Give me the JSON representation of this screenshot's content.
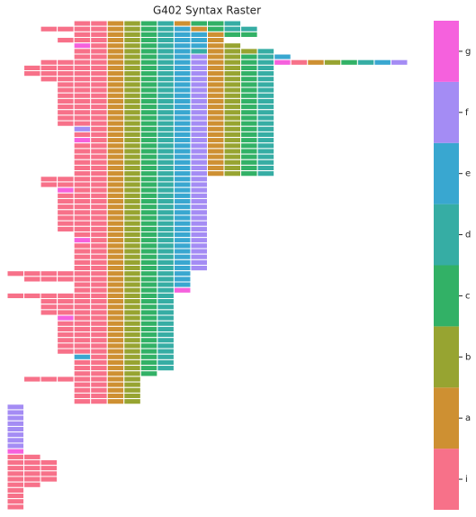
{
  "chart_data": {
    "type": "raster",
    "title": "G402 Syntax Raster",
    "colors": [
      "#f77189",
      "#ce9032",
      "#97a431",
      "#32b166",
      "#36ada4",
      "#39a7d0",
      "#a48cf4",
      "#f561dd"
    ],
    "clim": [
      -0.5,
      7.5
    ],
    "cticks": [
      {
        "value": 0,
        "label": "i"
      },
      {
        "value": 1,
        "label": "a"
      },
      {
        "value": 2,
        "label": "b"
      },
      {
        "value": 3,
        "label": "c"
      },
      {
        "value": 4,
        "label": "d"
      },
      {
        "value": 5,
        "label": "e"
      },
      {
        "value": 6,
        "label": "f"
      },
      {
        "value": 7,
        "label": "g"
      }
    ],
    "z": [
      [
        null,
        null,
        null,
        null,
        0,
        0,
        1,
        2,
        3,
        4,
        1,
        3,
        3,
        4
      ],
      [
        null,
        null,
        0,
        0,
        0,
        0,
        1,
        2,
        3,
        4,
        5,
        1,
        3,
        4,
        4
      ],
      [
        null,
        null,
        null,
        null,
        0,
        0,
        1,
        2,
        3,
        4,
        5,
        5,
        1,
        3,
        3
      ],
      [
        null,
        null,
        null,
        0,
        0,
        0,
        1,
        2,
        3,
        4,
        5,
        5,
        1
      ],
      [
        null,
        null,
        null,
        null,
        7,
        0,
        1,
        2,
        3,
        4,
        5,
        5,
        1,
        2
      ],
      [
        null,
        null,
        null,
        null,
        0,
        0,
        1,
        2,
        3,
        4,
        5,
        4,
        1,
        2,
        2,
        4
      ],
      [
        null,
        null,
        null,
        null,
        0,
        0,
        1,
        2,
        3,
        4,
        5,
        6,
        1,
        2,
        3,
        4,
        5
      ],
      [
        null,
        null,
        0,
        0,
        0,
        0,
        1,
        2,
        3,
        4,
        5,
        6,
        1,
        2,
        3,
        4,
        7,
        0,
        1,
        2,
        3,
        4,
        5,
        6
      ],
      [
        null,
        0,
        0,
        0,
        0,
        0,
        1,
        2,
        3,
        4,
        5,
        6,
        1,
        2,
        3,
        4
      ],
      [
        null,
        0,
        0,
        0,
        0,
        0,
        1,
        2,
        3,
        4,
        5,
        6,
        1,
        2,
        3,
        4
      ],
      [
        null,
        null,
        0,
        0,
        0,
        0,
        1,
        2,
        3,
        4,
        5,
        6,
        1,
        2,
        3,
        4
      ],
      [
        null,
        null,
        null,
        0,
        0,
        0,
        1,
        2,
        3,
        4,
        5,
        6,
        1,
        2,
        3,
        4
      ],
      [
        null,
        null,
        null,
        0,
        0,
        0,
        1,
        2,
        3,
        4,
        5,
        6,
        1,
        2,
        3,
        4
      ],
      [
        null,
        null,
        null,
        0,
        0,
        0,
        1,
        2,
        3,
        4,
        5,
        6,
        1,
        2,
        3,
        4
      ],
      [
        null,
        null,
        null,
        0,
        0,
        0,
        1,
        2,
        3,
        4,
        5,
        6,
        1,
        2,
        3,
        4
      ],
      [
        null,
        null,
        null,
        0,
        0,
        0,
        1,
        2,
        3,
        4,
        5,
        6,
        1,
        2,
        3,
        4
      ],
      [
        null,
        null,
        null,
        0,
        0,
        0,
        1,
        2,
        3,
        4,
        5,
        6,
        1,
        2,
        3,
        4
      ],
      [
        null,
        null,
        null,
        0,
        0,
        0,
        1,
        2,
        3,
        4,
        5,
        6,
        1,
        2,
        3,
        4
      ],
      [
        null,
        null,
        null,
        0,
        0,
        0,
        1,
        2,
        3,
        4,
        5,
        6,
        1,
        2,
        3,
        4
      ],
      [
        null,
        null,
        null,
        null,
        6,
        0,
        1,
        2,
        3,
        4,
        5,
        6,
        1,
        2,
        3,
        4
      ],
      [
        null,
        null,
        null,
        null,
        0,
        0,
        1,
        2,
        3,
        4,
        5,
        6,
        1,
        2,
        3,
        4
      ],
      [
        null,
        null,
        null,
        null,
        7,
        0,
        1,
        2,
        3,
        4,
        5,
        6,
        1,
        2,
        3,
        4
      ],
      [
        null,
        null,
        null,
        null,
        0,
        0,
        1,
        2,
        3,
        4,
        5,
        6,
        1,
        2,
        3,
        4
      ],
      [
        null,
        null,
        null,
        null,
        0,
        0,
        1,
        2,
        3,
        4,
        5,
        6,
        1,
        2,
        3,
        4
      ],
      [
        null,
        null,
        null,
        null,
        0,
        0,
        1,
        2,
        3,
        4,
        5,
        6,
        1,
        2,
        3,
        4
      ],
      [
        null,
        null,
        null,
        null,
        0,
        0,
        1,
        2,
        3,
        4,
        5,
        6,
        1,
        2,
        3,
        4
      ],
      [
        null,
        null,
        null,
        null,
        0,
        0,
        1,
        2,
        3,
        4,
        5,
        6,
        1,
        2,
        3,
        4
      ],
      [
        null,
        null,
        null,
        null,
        0,
        0,
        1,
        2,
        3,
        4,
        5,
        6,
        1,
        2,
        3,
        4
      ],
      [
        null,
        null,
        0,
        0,
        0,
        0,
        1,
        2,
        3,
        4,
        5,
        6
      ],
      [
        null,
        null,
        0,
        0,
        0,
        0,
        1,
        2,
        3,
        4,
        5,
        6
      ],
      [
        null,
        null,
        null,
        7,
        0,
        0,
        1,
        2,
        3,
        4,
        5,
        6
      ],
      [
        null,
        null,
        null,
        0,
        0,
        0,
        1,
        2,
        3,
        4,
        5,
        6
      ],
      [
        null,
        null,
        null,
        0,
        0,
        0,
        1,
        2,
        3,
        4,
        5,
        6
      ],
      [
        null,
        null,
        null,
        0,
        0,
        0,
        1,
        2,
        3,
        4,
        5,
        6
      ],
      [
        null,
        null,
        null,
        0,
        0,
        0,
        1,
        2,
        3,
        4,
        5,
        6
      ],
      [
        null,
        null,
        null,
        0,
        0,
        0,
        1,
        2,
        3,
        4,
        5,
        6
      ],
      [
        null,
        null,
        null,
        0,
        0,
        0,
        1,
        2,
        3,
        4,
        5,
        6
      ],
      [
        null,
        null,
        null,
        0,
        0,
        0,
        1,
        2,
        3,
        4,
        5,
        6
      ],
      [
        null,
        null,
        null,
        null,
        0,
        0,
        1,
        2,
        3,
        4,
        5,
        6
      ],
      [
        null,
        null,
        null,
        null,
        7,
        0,
        1,
        2,
        3,
        4,
        5,
        6
      ],
      [
        null,
        null,
        null,
        null,
        0,
        0,
        1,
        2,
        3,
        4,
        5,
        6
      ],
      [
        null,
        null,
        null,
        null,
        0,
        0,
        1,
        2,
        3,
        4,
        5,
        6
      ],
      [
        null,
        null,
        null,
        null,
        0,
        0,
        1,
        2,
        3,
        4,
        5,
        6
      ],
      [
        null,
        null,
        null,
        null,
        0,
        0,
        1,
        2,
        3,
        4,
        5,
        6
      ],
      [
        null,
        null,
        null,
        null,
        0,
        0,
        1,
        2,
        3,
        4,
        5,
        6
      ],
      [
        0,
        0,
        0,
        0,
        0,
        0,
        1,
        2,
        3,
        4,
        5
      ],
      [
        null,
        0,
        0,
        0,
        0,
        0,
        1,
        2,
        3,
        4,
        5
      ],
      [
        null,
        null,
        null,
        null,
        0,
        0,
        1,
        2,
        3,
        4,
        5
      ],
      [
        null,
        null,
        null,
        null,
        0,
        0,
        1,
        2,
        3,
        4,
        7
      ],
      [
        0,
        0,
        0,
        0,
        0,
        0,
        1,
        2,
        3,
        4
      ],
      [
        null,
        null,
        0,
        0,
        0,
        0,
        1,
        2,
        3,
        4
      ],
      [
        null,
        null,
        0,
        0,
        0,
        0,
        1,
        2,
        3,
        4
      ],
      [
        null,
        null,
        0,
        0,
        0,
        0,
        1,
        2,
        3,
        4
      ],
      [
        null,
        null,
        null,
        7,
        0,
        0,
        1,
        2,
        3,
        4
      ],
      [
        null,
        null,
        null,
        0,
        0,
        0,
        1,
        2,
        3,
        4
      ],
      [
        null,
        null,
        null,
        0,
        0,
        0,
        1,
        2,
        3,
        4
      ],
      [
        null,
        null,
        null,
        0,
        0,
        0,
        1,
        2,
        3,
        4
      ],
      [
        null,
        null,
        null,
        0,
        0,
        0,
        1,
        2,
        3,
        4
      ],
      [
        null,
        null,
        null,
        0,
        0,
        0,
        1,
        2,
        3,
        4
      ],
      [
        null,
        null,
        null,
        0,
        0,
        0,
        1,
        2,
        3,
        4
      ],
      [
        null,
        null,
        null,
        null,
        5,
        0,
        1,
        2,
        3,
        4
      ],
      [
        null,
        null,
        null,
        null,
        0,
        0,
        1,
        2,
        3,
        4
      ],
      [
        null,
        null,
        null,
        null,
        0,
        0,
        1,
        2,
        3,
        4
      ],
      [
        null,
        null,
        null,
        null,
        0,
        0,
        1,
        2,
        3
      ],
      [
        null,
        0,
        0,
        0,
        0,
        0,
        1,
        2
      ],
      [
        null,
        null,
        null,
        null,
        0,
        0,
        1,
        2
      ],
      [
        null,
        null,
        null,
        null,
        0,
        0,
        1,
        2
      ],
      [
        null,
        null,
        null,
        null,
        0,
        0,
        1,
        2
      ],
      [
        null,
        null,
        null,
        null,
        0,
        0,
        1,
        2
      ],
      [
        6
      ],
      [
        6
      ],
      [
        6
      ],
      [
        6
      ],
      [
        6
      ],
      [
        6
      ],
      [
        6
      ],
      [
        6
      ],
      [
        7
      ],
      [
        0,
        0
      ],
      [
        0,
        0,
        0
      ],
      [
        0,
        0,
        0
      ],
      [
        0,
        0,
        0
      ],
      [
        0,
        0,
        0
      ],
      [
        0,
        0
      ],
      [
        0
      ],
      [
        0
      ],
      [
        0
      ],
      [
        0
      ]
    ]
  }
}
